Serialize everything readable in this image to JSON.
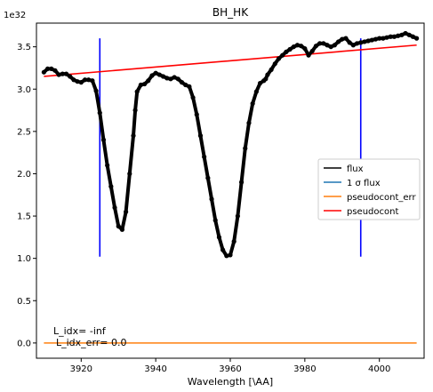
{
  "chart_data": {
    "type": "line",
    "title": "BH_HK",
    "xlabel": "Wavelength [\\AA]",
    "ylabel": "",
    "y_exponent_label": "1e32",
    "xlim": [
      3908,
      4012
    ],
    "ylim": [
      -0.18,
      3.78
    ],
    "x_ticks": [
      3920,
      3940,
      3960,
      3980,
      4000
    ],
    "y_ticks": [
      0.0,
      0.5,
      1.0,
      1.5,
      2.0,
      2.5,
      3.0,
      3.5
    ],
    "x_tick_labels": [
      "3920",
      "3940",
      "3960",
      "3980",
      "4000"
    ],
    "y_tick_labels": [
      "0.0",
      "0.5",
      "1.0",
      "1.5",
      "2.0",
      "2.5",
      "3.0",
      "3.5"
    ],
    "grid": false,
    "legend_placement": "center-right",
    "legend": [
      {
        "label": "flux",
        "color": "#000000"
      },
      {
        "label": "1 σ flux",
        "color": "#1f77b4"
      },
      {
        "label": "pseudocont_err",
        "color": "#ff7f0e"
      },
      {
        "label": "pseudocont",
        "color": "#ff0000"
      }
    ],
    "annotations": [
      "L_idx= -inf",
      "L_idx_err= 0.0"
    ],
    "series": [
      {
        "name": "flux",
        "color": "#000000",
        "style": "markers",
        "x": [
          3910,
          3911,
          3912,
          3913,
          3914,
          3915,
          3916,
          3917,
          3918,
          3919,
          3920,
          3921,
          3922,
          3923,
          3924,
          3925,
          3926,
          3927,
          3928,
          3929,
          3930,
          3931,
          3932,
          3933,
          3934,
          3934.5,
          3935,
          3936,
          3937,
          3938,
          3939,
          3940,
          3941,
          3942,
          3943,
          3944,
          3945,
          3946,
          3947,
          3948,
          3949,
          3950,
          3951,
          3952,
          3953,
          3954,
          3955,
          3956,
          3957,
          3958,
          3959,
          3960,
          3961,
          3962,
          3963,
          3964,
          3965,
          3966,
          3967,
          3968,
          3969,
          3969.5,
          3970,
          3971,
          3972,
          3973,
          3974,
          3975,
          3976,
          3977,
          3978,
          3979,
          3980,
          3981,
          3982,
          3983,
          3984,
          3985,
          3986,
          3987,
          3988,
          3989,
          3990,
          3991,
          3992,
          3993,
          3994,
          3995,
          3996,
          3997,
          3998,
          3999,
          4000,
          4001,
          4002,
          4003,
          4004,
          4005,
          4006,
          4007,
          4008,
          4009,
          4010
        ],
        "y": [
          3.2,
          3.24,
          3.24,
          3.22,
          3.17,
          3.18,
          3.18,
          3.15,
          3.11,
          3.09,
          3.08,
          3.11,
          3.11,
          3.1,
          2.98,
          2.72,
          2.4,
          2.1,
          1.85,
          1.6,
          1.38,
          1.34,
          1.55,
          2.0,
          2.45,
          2.75,
          2.97,
          3.05,
          3.06,
          3.1,
          3.16,
          3.19,
          3.17,
          3.15,
          3.13,
          3.12,
          3.14,
          3.12,
          3.08,
          3.05,
          3.03,
          2.9,
          2.7,
          2.45,
          2.2,
          1.95,
          1.7,
          1.45,
          1.25,
          1.1,
          1.03,
          1.04,
          1.2,
          1.5,
          1.9,
          2.3,
          2.6,
          2.83,
          2.97,
          3.07,
          3.1,
          3.12,
          3.17,
          3.23,
          3.3,
          3.36,
          3.4,
          3.44,
          3.47,
          3.5,
          3.52,
          3.51,
          3.48,
          3.4,
          3.45,
          3.51,
          3.54,
          3.54,
          3.52,
          3.5,
          3.52,
          3.56,
          3.59,
          3.6,
          3.55,
          3.52,
          3.54,
          3.55,
          3.56,
          3.57,
          3.58,
          3.59,
          3.6,
          3.6,
          3.61,
          3.62,
          3.62,
          3.63,
          3.64,
          3.66,
          3.64,
          3.62,
          3.6
        ]
      },
      {
        "name": "pseudocont",
        "color": "#ff0000",
        "style": "line",
        "x": [
          3910,
          4010
        ],
        "y": [
          3.15,
          3.52
        ]
      },
      {
        "name": "pseudocont_err",
        "color": "#ff7f0e",
        "style": "line",
        "x": [
          3910,
          4010
        ],
        "y": [
          0.0,
          0.0
        ]
      }
    ],
    "vertical_lines": [
      {
        "x": 3925,
        "y_range": [
          1.02,
          3.6
        ],
        "color": "#0000ff"
      },
      {
        "x": 3995,
        "y_range": [
          1.02,
          3.6
        ],
        "color": "#0000ff"
      }
    ]
  }
}
